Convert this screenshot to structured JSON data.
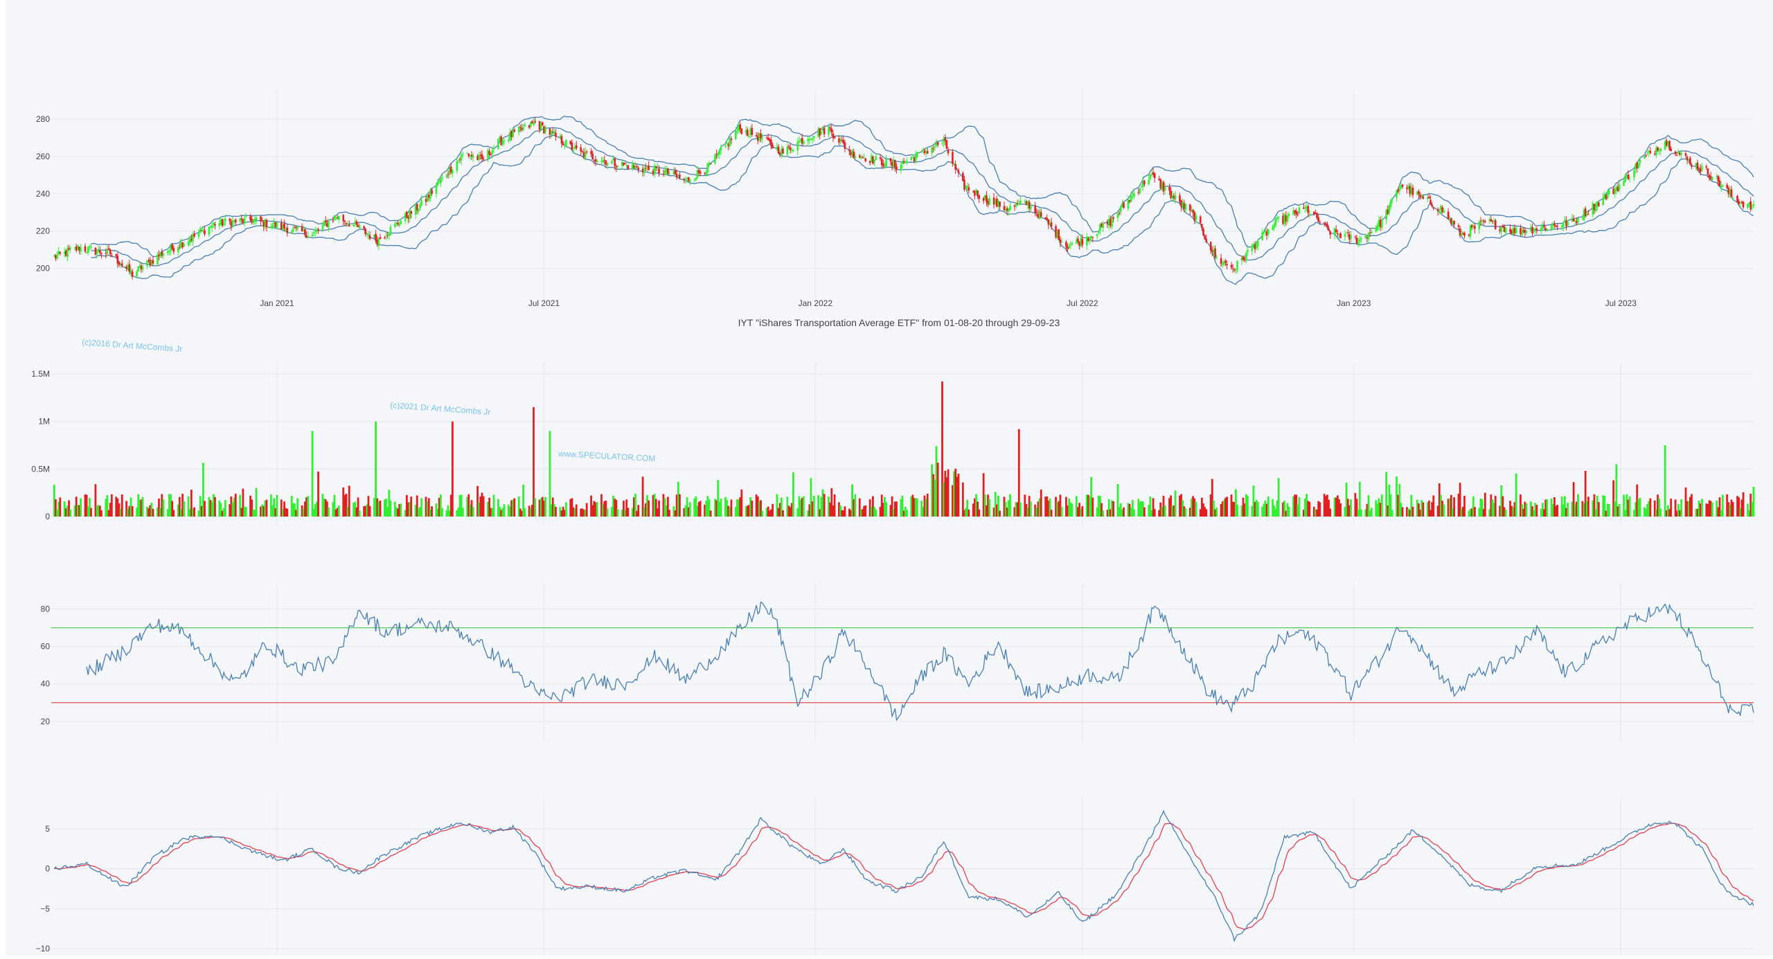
{
  "chart_data": [
    {
      "type": "candlestick",
      "panel": "price",
      "title": "IYT \"iShares Transportation Average ETF\" from 01-08-20 through 29-09-23",
      "x_range": [
        "2020-08-01",
        "2023-09-29"
      ],
      "ylim": [
        188,
        290
      ],
      "y_ticks": [
        200,
        220,
        240,
        260,
        280
      ],
      "x_ticks": [
        {
          "date": "2021-01-01",
          "label": "Jan 2021"
        },
        {
          "date": "2021-07-01",
          "label": "Jul 2021"
        },
        {
          "date": "2022-01-01",
          "label": "Jan 2022"
        },
        {
          "date": "2022-07-01",
          "label": "Jul 2022"
        },
        {
          "date": "2023-01-01",
          "label": "Jan 2023"
        },
        {
          "date": "2023-07-01",
          "label": "Jul 2023"
        }
      ],
      "grid": true,
      "overlay": "bollinger-bands",
      "colors": {
        "up": "#33ee33",
        "down": "#e02020",
        "bands": "#4a7eb0"
      },
      "close_path": [
        [
          "2020-08-03",
          206
        ],
        [
          "2020-08-20",
          211
        ],
        [
          "2020-09-10",
          208
        ],
        [
          "2020-09-25",
          197
        ],
        [
          "2020-10-15",
          208
        ],
        [
          "2020-11-01",
          215
        ],
        [
          "2020-11-20",
          224
        ],
        [
          "2020-12-15",
          226
        ],
        [
          "2021-01-05",
          222
        ],
        [
          "2021-01-25",
          218
        ],
        [
          "2021-02-10",
          228
        ],
        [
          "2021-02-25",
          222
        ],
        [
          "2021-03-10",
          215
        ],
        [
          "2021-03-25",
          225
        ],
        [
          "2021-04-10",
          235
        ],
        [
          "2021-04-25",
          250
        ],
        [
          "2021-05-08",
          262
        ],
        [
          "2021-05-20",
          258
        ],
        [
          "2021-06-01",
          268
        ],
        [
          "2021-06-15",
          274
        ],
        [
          "2021-06-25",
          278
        ],
        [
          "2021-07-10",
          270
        ],
        [
          "2021-07-25",
          262
        ],
        [
          "2021-08-10",
          258
        ],
        [
          "2021-09-01",
          254
        ],
        [
          "2021-09-20",
          252
        ],
        [
          "2021-10-05",
          247
        ],
        [
          "2021-10-20",
          254
        ],
        [
          "2021-11-01",
          265
        ],
        [
          "2021-11-10",
          275
        ],
        [
          "2021-11-25",
          270
        ],
        [
          "2021-12-10",
          262
        ],
        [
          "2021-12-25",
          270
        ],
        [
          "2022-01-10",
          275
        ],
        [
          "2022-01-25",
          262
        ],
        [
          "2022-02-10",
          258
        ],
        [
          "2022-02-25",
          255
        ],
        [
          "2022-03-15",
          262
        ],
        [
          "2022-03-29",
          268
        ],
        [
          "2022-04-10",
          245
        ],
        [
          "2022-04-25",
          238
        ],
        [
          "2022-05-10",
          232
        ],
        [
          "2022-05-25",
          235
        ],
        [
          "2022-06-10",
          222
        ],
        [
          "2022-06-20",
          212
        ],
        [
          "2022-07-01",
          215
        ],
        [
          "2022-07-20",
          225
        ],
        [
          "2022-08-05",
          240
        ],
        [
          "2022-08-16",
          250
        ],
        [
          "2022-09-01",
          238
        ],
        [
          "2022-09-15",
          228
        ],
        [
          "2022-09-30",
          205
        ],
        [
          "2022-10-12",
          200
        ],
        [
          "2022-10-25",
          212
        ],
        [
          "2022-11-10",
          225
        ],
        [
          "2022-11-30",
          232
        ],
        [
          "2022-12-15",
          220
        ],
        [
          "2023-01-05",
          215
        ],
        [
          "2023-01-20",
          225
        ],
        [
          "2023-02-02",
          245
        ],
        [
          "2023-02-15",
          238
        ],
        [
          "2023-03-01",
          232
        ],
        [
          "2023-03-15",
          218
        ],
        [
          "2023-04-01",
          225
        ],
        [
          "2023-04-20",
          220
        ],
        [
          "2023-05-10",
          222
        ],
        [
          "2023-05-30",
          225
        ],
        [
          "2023-06-15",
          235
        ],
        [
          "2023-07-01",
          245
        ],
        [
          "2023-07-15",
          258
        ],
        [
          "2023-07-31",
          268
        ],
        [
          "2023-08-15",
          258
        ],
        [
          "2023-09-01",
          250
        ],
        [
          "2023-09-15",
          238
        ],
        [
          "2023-09-29",
          232
        ]
      ]
    },
    {
      "type": "bar",
      "panel": "volume",
      "ylim": [
        0,
        1500000
      ],
      "y_ticks": [
        {
          "value": 0,
          "label": "0"
        },
        {
          "value": 500000,
          "label": "0.5M"
        },
        {
          "value": 1000000,
          "label": "1M"
        },
        {
          "value": 1500000,
          "label": "1.5M"
        }
      ],
      "grid": true,
      "colors": {
        "up": "#33ee33",
        "down": "#e02020"
      },
      "spikes": [
        [
          "2021-01-25",
          900000,
          "up"
        ],
        [
          "2021-03-10",
          1000000,
          "up"
        ],
        [
          "2021-05-01",
          1000000,
          "down"
        ],
        [
          "2021-06-25",
          1150000,
          "down"
        ],
        [
          "2021-07-06",
          900000,
          "up"
        ],
        [
          "2022-03-29",
          1420000,
          "down"
        ],
        [
          "2022-05-20",
          920000,
          "down"
        ],
        [
          "2023-07-31",
          750000,
          "up"
        ]
      ]
    },
    {
      "type": "line",
      "panel": "rsi",
      "ylim": [
        14,
        88
      ],
      "y_ticks": [
        20,
        40,
        60,
        80
      ],
      "thresholds": [
        {
          "value": 70,
          "color": "#55cc55"
        },
        {
          "value": 30,
          "color": "#e05050"
        }
      ],
      "colors": {
        "line": "#4a7eb0"
      },
      "path": [
        [
          "2020-08-25",
          46
        ],
        [
          "2020-09-20",
          58
        ],
        [
          "2020-10-10",
          72
        ],
        [
          "2020-10-30",
          68
        ],
        [
          "2020-11-20",
          50
        ],
        [
          "2020-12-05",
          40
        ],
        [
          "2020-12-25",
          62
        ],
        [
          "2021-01-15",
          48
        ],
        [
          "2021-02-10",
          52
        ],
        [
          "2021-02-25",
          80
        ],
        [
          "2021-03-15",
          68
        ],
        [
          "2021-04-10",
          72
        ],
        [
          "2021-05-01",
          70
        ],
        [
          "2021-05-20",
          60
        ],
        [
          "2021-06-10",
          48
        ],
        [
          "2021-06-25",
          36
        ],
        [
          "2021-07-10",
          32
        ],
        [
          "2021-08-01",
          42
        ],
        [
          "2021-08-25",
          40
        ],
        [
          "2021-09-15",
          55
        ],
        [
          "2021-10-05",
          42
        ],
        [
          "2021-10-25",
          55
        ],
        [
          "2021-11-10",
          68
        ],
        [
          "2021-11-25",
          82
        ],
        [
          "2021-12-05",
          75
        ],
        [
          "2021-12-20",
          30
        ],
        [
          "2022-01-05",
          45
        ],
        [
          "2022-01-20",
          68
        ],
        [
          "2022-02-05",
          50
        ],
        [
          "2022-02-25",
          22
        ],
        [
          "2022-03-15",
          45
        ],
        [
          "2022-03-29",
          56
        ],
        [
          "2022-04-15",
          40
        ],
        [
          "2022-05-05",
          62
        ],
        [
          "2022-05-25",
          35
        ],
        [
          "2022-06-15",
          38
        ],
        [
          "2022-07-05",
          45
        ],
        [
          "2022-07-25",
          42
        ],
        [
          "2022-08-10",
          65
        ],
        [
          "2022-08-20",
          82
        ],
        [
          "2022-09-05",
          62
        ],
        [
          "2022-09-25",
          35
        ],
        [
          "2022-10-10",
          28
        ],
        [
          "2022-10-25",
          40
        ],
        [
          "2022-11-10",
          62
        ],
        [
          "2022-11-25",
          68
        ],
        [
          "2022-12-10",
          60
        ],
        [
          "2022-12-30",
          35
        ],
        [
          "2023-01-20",
          55
        ],
        [
          "2023-02-03",
          72
        ],
        [
          "2023-02-20",
          55
        ],
        [
          "2023-03-10",
          35
        ],
        [
          "2023-03-25",
          45
        ],
        [
          "2023-04-15",
          52
        ],
        [
          "2023-05-05",
          68
        ],
        [
          "2023-05-25",
          45
        ],
        [
          "2023-06-15",
          60
        ],
        [
          "2023-07-01",
          70
        ],
        [
          "2023-07-20",
          78
        ],
        [
          "2023-08-05",
          80
        ],
        [
          "2023-08-20",
          62
        ],
        [
          "2023-09-05",
          38
        ],
        [
          "2023-09-15",
          24
        ],
        [
          "2023-09-29",
          26
        ]
      ]
    },
    {
      "type": "line",
      "panel": "macd",
      "ylim": [
        -10.5,
        7.5
      ],
      "y_ticks": [
        {
          "value": 5,
          "label": "5"
        },
        {
          "value": 0,
          "label": "0"
        },
        {
          "value": -5,
          "label": "−5"
        },
        {
          "value": -10,
          "label": "−10"
        }
      ],
      "colors": {
        "macd": "#4a7eb0",
        "signal": "#e04050"
      },
      "path": [
        [
          "2020-08-03",
          0
        ],
        [
          "2020-08-25",
          0.6
        ],
        [
          "2020-09-20",
          -2.4
        ],
        [
          "2020-10-10",
          1.5
        ],
        [
          "2020-10-30",
          3.8
        ],
        [
          "2020-11-20",
          4.2
        ],
        [
          "2020-12-15",
          2.2
        ],
        [
          "2021-01-05",
          1.0
        ],
        [
          "2021-01-25",
          2.5
        ],
        [
          "2021-02-10",
          0.2
        ],
        [
          "2021-02-25",
          -0.5
        ],
        [
          "2021-03-15",
          1.8
        ],
        [
          "2021-04-10",
          4.2
        ],
        [
          "2021-05-05",
          5.8
        ],
        [
          "2021-05-25",
          4.6
        ],
        [
          "2021-06-10",
          5.2
        ],
        [
          "2021-06-25",
          2.0
        ],
        [
          "2021-07-10",
          -2.5
        ],
        [
          "2021-08-01",
          -2.2
        ],
        [
          "2021-08-25",
          -2.8
        ],
        [
          "2021-09-15",
          -1.0
        ],
        [
          "2021-10-05",
          -0.2
        ],
        [
          "2021-10-25",
          -1.5
        ],
        [
          "2021-11-10",
          2.0
        ],
        [
          "2021-11-25",
          6.2
        ],
        [
          "2021-12-15",
          3.0
        ],
        [
          "2022-01-05",
          0.5
        ],
        [
          "2022-01-20",
          2.5
        ],
        [
          "2022-02-05",
          -1.5
        ],
        [
          "2022-02-25",
          -2.8
        ],
        [
          "2022-03-15",
          -0.8
        ],
        [
          "2022-03-29",
          3.5
        ],
        [
          "2022-04-15",
          -3.5
        ],
        [
          "2022-05-05",
          -3.8
        ],
        [
          "2022-05-25",
          -6.0
        ],
        [
          "2022-06-15",
          -3.0
        ],
        [
          "2022-07-01",
          -6.8
        ],
        [
          "2022-07-25",
          -3.0
        ],
        [
          "2022-08-10",
          2.0
        ],
        [
          "2022-08-25",
          7.0
        ],
        [
          "2022-09-10",
          2.0
        ],
        [
          "2022-09-30",
          -4.0
        ],
        [
          "2022-10-12",
          -8.8
        ],
        [
          "2022-10-30",
          -5.5
        ],
        [
          "2022-11-15",
          4.0
        ],
        [
          "2022-12-05",
          4.5
        ],
        [
          "2022-12-30",
          -2.5
        ],
        [
          "2023-01-25",
          2.0
        ],
        [
          "2023-02-10",
          4.8
        ],
        [
          "2023-02-28",
          2.0
        ],
        [
          "2023-03-20",
          -2.0
        ],
        [
          "2023-04-10",
          -2.8
        ],
        [
          "2023-05-05",
          0.3
        ],
        [
          "2023-06-01",
          0.5
        ],
        [
          "2023-06-25",
          3.0
        ],
        [
          "2023-07-20",
          5.5
        ],
        [
          "2023-08-05",
          6.0
        ],
        [
          "2023-08-25",
          2.5
        ],
        [
          "2023-09-10",
          -2.8
        ],
        [
          "2023-09-29",
          -4.5
        ]
      ]
    }
  ],
  "watermarks": {
    "copyright_2016": "(c)2016 Dr Art McCombs Jr",
    "copyright_2021": "(c)2021 Dr Art McCombs Jr",
    "website": "www.SPECULATOR.COM"
  }
}
